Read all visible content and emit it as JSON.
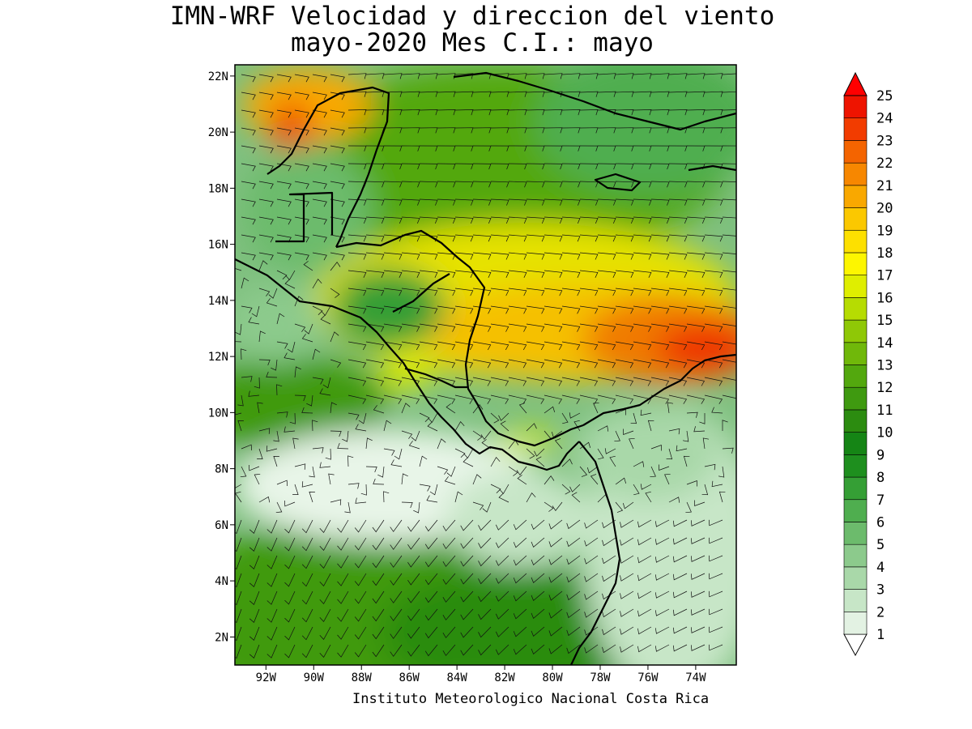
{
  "title": {
    "line1": "IMN-WRF Velocidad y direccion del viento",
    "line2": "mayo-2020 Mes C.I.: mayo"
  },
  "credit": "Instituto Meteorologico Nacional Costa Rica",
  "axes": {
    "lat_labels": [
      "22N",
      "20N",
      "18N",
      "16N",
      "14N",
      "12N",
      "10N",
      "8N",
      "6N",
      "4N",
      "2N"
    ],
    "lat_values": [
      22,
      20,
      18,
      16,
      14,
      12,
      10,
      8,
      6,
      4,
      2
    ],
    "lon_labels": [
      "92W",
      "90W",
      "88W",
      "86W",
      "84W",
      "82W",
      "80W",
      "78W",
      "76W",
      "74W"
    ],
    "lon_values": [
      -92,
      -90,
      -88,
      -86,
      -84,
      -82,
      -80,
      -78,
      -76,
      -74
    ],
    "lon_range": [
      -93.3,
      -72.3
    ],
    "lat_range": [
      1.0,
      22.4
    ]
  },
  "colorbar": {
    "levels": [
      "1",
      "2",
      "3",
      "4",
      "5",
      "6",
      "7",
      "8",
      "9",
      "10",
      "11",
      "12",
      "13",
      "14",
      "15",
      "16",
      "17",
      "18",
      "19",
      "20",
      "21",
      "22",
      "23",
      "24",
      "25"
    ],
    "colors": [
      "#ffffff",
      "#e3f2e3",
      "#c7e6c7",
      "#a9d8a9",
      "#8cca8c",
      "#6cbb6c",
      "#4fae4f",
      "#359f35",
      "#1e8f1e",
      "#158515",
      "#2c8c10",
      "#3f9a10",
      "#53a80e",
      "#70b80a",
      "#8fc806",
      "#b6dc02",
      "#dfee00",
      "#fdf600",
      "#fde000",
      "#fbc800",
      "#f9a800",
      "#f78700",
      "#f46400",
      "#f23c00",
      "#ee1400"
    ],
    "over_color": "#ff0000"
  },
  "chart_data": {
    "type": "heatmap",
    "variable": "wind speed and direction",
    "levels": [
      1,
      2,
      3,
      4,
      5,
      6,
      7,
      8,
      9,
      10,
      11,
      12,
      13,
      14,
      15,
      16,
      17,
      18,
      19,
      20,
      21,
      22,
      23,
      24,
      25
    ],
    "regions": [
      {
        "lon": -77,
        "lat": 12.5,
        "speed": 22
      },
      {
        "lon": -78,
        "lat": 15,
        "speed": 18
      },
      {
        "lon": -83,
        "lat": 14,
        "speed": 16
      },
      {
        "lon": -89.5,
        "lat": 20.5,
        "speed": 21
      },
      {
        "lon": -84,
        "lat": 19.5,
        "speed": 13
      },
      {
        "lon": -85,
        "lat": 8,
        "speed": 3
      },
      {
        "lon": -81,
        "lat": 4,
        "speed": 12
      },
      {
        "lon": -76,
        "lat": 6,
        "speed": 3
      },
      {
        "lon": -91,
        "lat": 13,
        "speed": 6
      }
    ]
  }
}
